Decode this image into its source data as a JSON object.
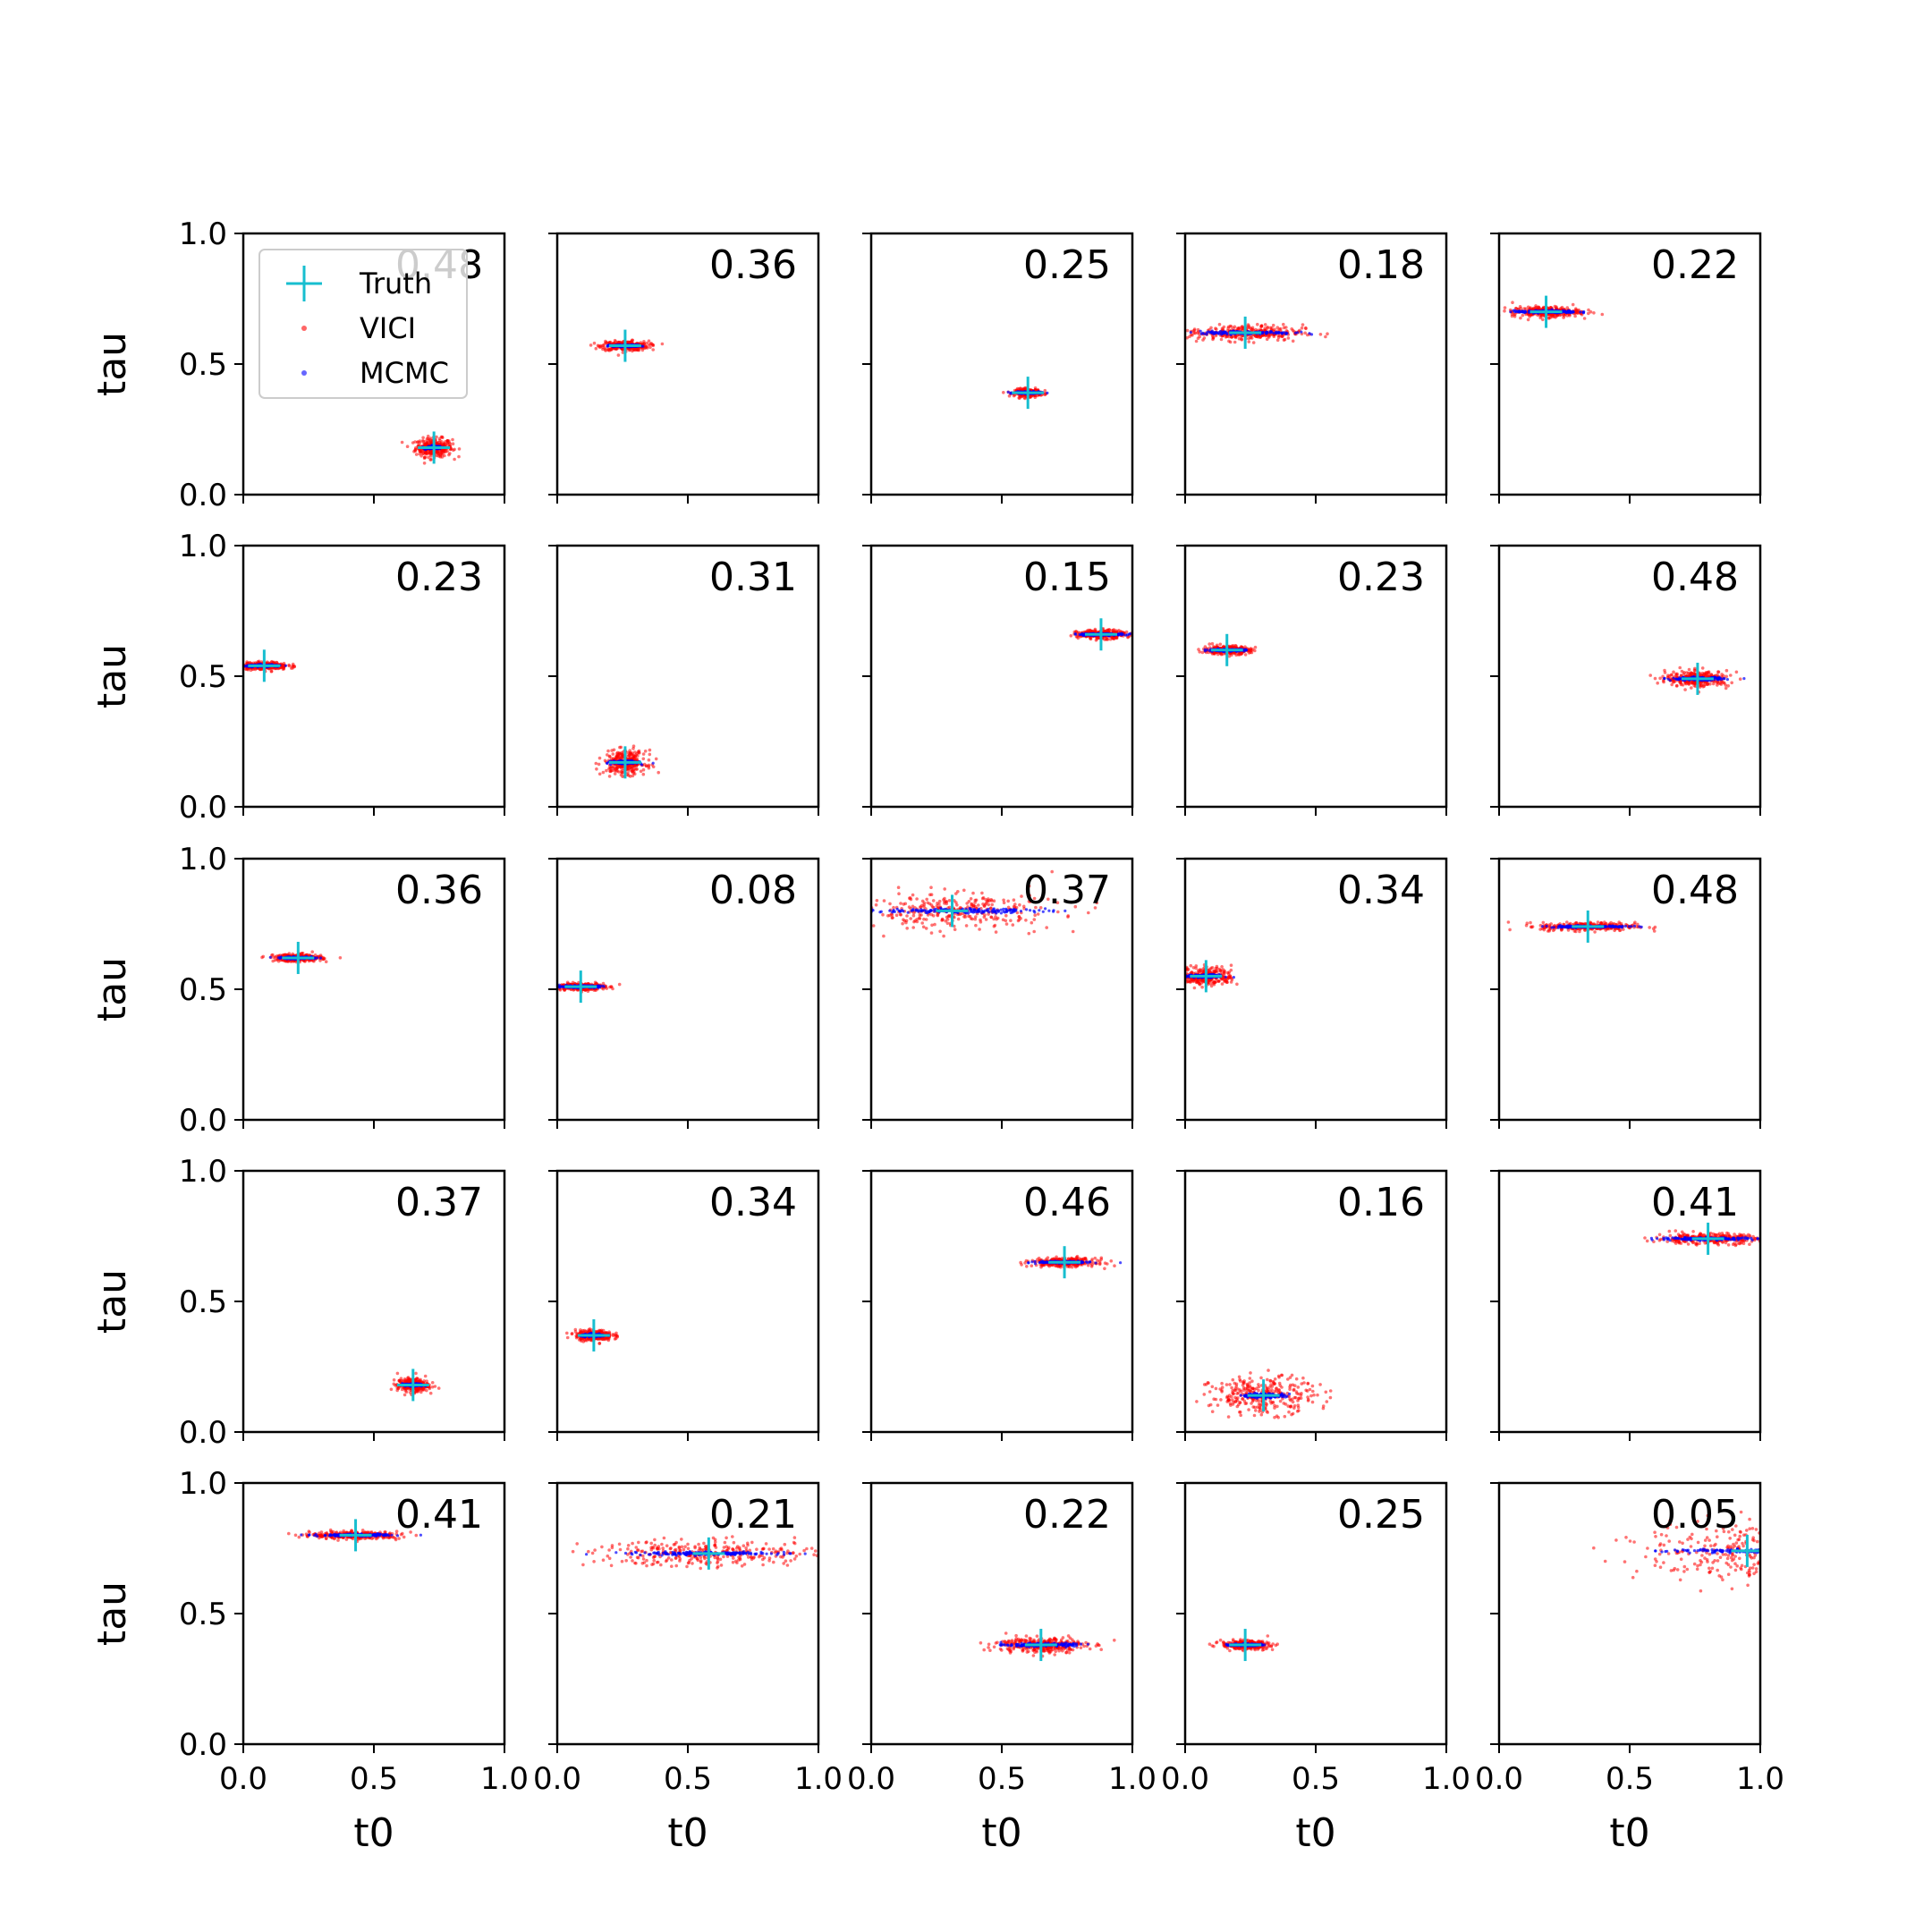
{
  "chart_data": {
    "type": "scatter",
    "grid": false,
    "rows": 5,
    "cols": 5,
    "xlabel": "t0",
    "ylabel": "tau",
    "xlim": [
      0,
      1
    ],
    "ylim": [
      0,
      1
    ],
    "x_ticks": [
      "0.0",
      "0.5",
      "1.0"
    ],
    "y_ticks": [
      "0.0",
      "0.5",
      "1.0"
    ],
    "legend": {
      "location": "upper-left",
      "panel": 0,
      "entries": [
        {
          "label": "Truth",
          "marker": "plus",
          "color": "#17becf"
        },
        {
          "label": "VICI",
          "marker": "dot",
          "color": "#ff0000"
        },
        {
          "label": "MCMC",
          "marker": "dot",
          "color": "#0000ff"
        }
      ]
    },
    "colors": {
      "truth": "#17becf",
      "vici": "#ff0000",
      "mcmc": "#0000ff"
    },
    "panels": [
      {
        "label": "0.48",
        "truth": [
          0.73,
          0.18
        ],
        "vici_spread": [
          0.07,
          0.035
        ],
        "mcmc_spread": [
          0.03,
          0.006
        ]
      },
      {
        "label": "0.36",
        "truth": [
          0.26,
          0.57
        ],
        "vici_spread": [
          0.09,
          0.018
        ],
        "mcmc_spread": [
          0.06,
          0.004
        ]
      },
      {
        "label": "0.25",
        "truth": [
          0.6,
          0.39
        ],
        "vici_spread": [
          0.05,
          0.014
        ],
        "mcmc_spread": [
          0.05,
          0.004
        ]
      },
      {
        "label": "0.18",
        "truth": [
          0.23,
          0.62
        ],
        "vici_spread": [
          0.22,
          0.03
        ],
        "mcmc_spread": [
          0.18,
          0.006
        ]
      },
      {
        "label": "0.22",
        "truth": [
          0.18,
          0.7
        ],
        "vici_spread": [
          0.13,
          0.02
        ],
        "mcmc_spread": [
          0.12,
          0.005
        ]
      },
      {
        "label": "0.23",
        "truth": [
          0.08,
          0.54
        ],
        "vici_spread": [
          0.09,
          0.014
        ],
        "mcmc_spread": [
          0.07,
          0.004
        ]
      },
      {
        "label": "0.31",
        "truth": [
          0.26,
          0.17
        ],
        "vici_spread": [
          0.08,
          0.045
        ],
        "mcmc_spread": [
          0.05,
          0.006
        ]
      },
      {
        "label": "0.15",
        "truth": [
          0.88,
          0.66
        ],
        "vici_spread": [
          0.09,
          0.016
        ],
        "mcmc_spread": [
          0.09,
          0.004
        ]
      },
      {
        "label": "0.23",
        "truth": [
          0.16,
          0.6
        ],
        "vici_spread": [
          0.09,
          0.016
        ],
        "mcmc_spread": [
          0.07,
          0.004
        ]
      },
      {
        "label": "0.48",
        "truth": [
          0.76,
          0.49
        ],
        "vici_spread": [
          0.12,
          0.03
        ],
        "mcmc_spread": [
          0.1,
          0.006
        ]
      },
      {
        "label": "0.36",
        "truth": [
          0.21,
          0.62
        ],
        "vici_spread": [
          0.09,
          0.014
        ],
        "mcmc_spread": [
          0.07,
          0.004
        ]
      },
      {
        "label": "0.08",
        "truth": [
          0.09,
          0.51
        ],
        "vici_spread": [
          0.09,
          0.014
        ],
        "mcmc_spread": [
          0.07,
          0.004
        ]
      },
      {
        "label": "0.37",
        "truth": [
          0.31,
          0.8
        ],
        "vici_spread": [
          0.4,
          0.07
        ],
        "mcmc_spread": [
          0.35,
          0.008
        ]
      },
      {
        "label": "0.34",
        "truth": [
          0.08,
          0.55
        ],
        "vici_spread": [
          0.1,
          0.035
        ],
        "mcmc_spread": [
          0.07,
          0.006
        ]
      },
      {
        "label": "0.48",
        "truth": [
          0.34,
          0.74
        ],
        "vici_spread": [
          0.18,
          0.016
        ],
        "mcmc_spread": [
          0.15,
          0.004
        ]
      },
      {
        "label": "0.37",
        "truth": [
          0.65,
          0.18
        ],
        "vici_spread": [
          0.06,
          0.025
        ],
        "mcmc_spread": [
          0.04,
          0.005
        ]
      },
      {
        "label": "0.34",
        "truth": [
          0.14,
          0.37
        ],
        "vici_spread": [
          0.07,
          0.02
        ],
        "mcmc_spread": [
          0.05,
          0.005
        ]
      },
      {
        "label": "0.46",
        "truth": [
          0.74,
          0.65
        ],
        "vici_spread": [
          0.12,
          0.016
        ],
        "mcmc_spread": [
          0.1,
          0.004
        ]
      },
      {
        "label": "0.16",
        "truth": [
          0.3,
          0.14
        ],
        "vici_spread": [
          0.2,
          0.07
        ],
        "mcmc_spread": [
          0.08,
          0.008
        ]
      },
      {
        "label": "0.41",
        "truth": [
          0.8,
          0.74
        ],
        "vici_spread": [
          0.2,
          0.02
        ],
        "mcmc_spread": [
          0.18,
          0.005
        ]
      },
      {
        "label": "0.41",
        "truth": [
          0.43,
          0.8
        ],
        "vici_spread": [
          0.17,
          0.014
        ],
        "mcmc_spread": [
          0.14,
          0.004
        ]
      },
      {
        "label": "0.21",
        "truth": [
          0.58,
          0.73
        ],
        "vici_spread": [
          0.45,
          0.05
        ],
        "mcmc_spread": [
          0.3,
          0.006
        ]
      },
      {
        "label": "0.22",
        "truth": [
          0.65,
          0.38
        ],
        "vici_spread": [
          0.17,
          0.03
        ],
        "mcmc_spread": [
          0.13,
          0.006
        ]
      },
      {
        "label": "0.25",
        "truth": [
          0.23,
          0.38
        ],
        "vici_spread": [
          0.09,
          0.016
        ],
        "mcmc_spread": [
          0.06,
          0.004
        ]
      },
      {
        "label": "0.05",
        "truth": [
          0.95,
          0.74
        ],
        "vici_spread": [
          0.4,
          0.12
        ],
        "mcmc_spread": [
          0.3,
          0.008
        ]
      }
    ]
  }
}
